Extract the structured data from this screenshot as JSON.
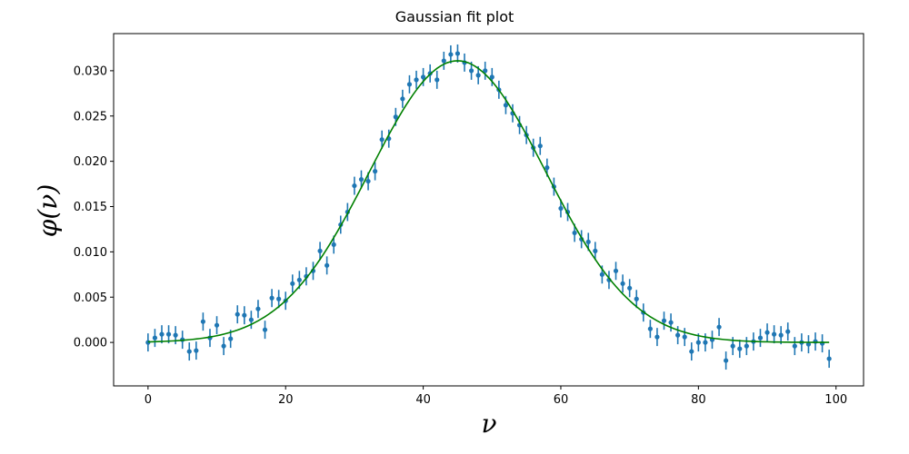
{
  "chart_data": {
    "type": "scatter",
    "title": "Gaussian fit plot",
    "xlabel": "ν",
    "ylabel": "φ(ν)",
    "xlim": [
      -5,
      104
    ],
    "ylim": [
      -0.0048,
      0.0341
    ],
    "xticks": [
      0,
      20,
      40,
      60,
      80,
      100
    ],
    "xtick_labels": [
      "0",
      "20",
      "40",
      "60",
      "80",
      "100"
    ],
    "yticks": [
      0.0,
      0.005,
      0.01,
      0.015,
      0.02,
      0.025,
      0.03
    ],
    "ytick_labels": [
      "0.000",
      "0.005",
      "0.010",
      "0.015",
      "0.020",
      "0.025",
      "0.030"
    ],
    "grid": false,
    "series": [
      {
        "kind": "errorbar",
        "color": "#1f77b4",
        "x": [
          0,
          1,
          2,
          3,
          4,
          5,
          6,
          7,
          8,
          9,
          10,
          11,
          12,
          13,
          14,
          15,
          16,
          17,
          18,
          19,
          20,
          21,
          22,
          23,
          24,
          25,
          26,
          27,
          28,
          29,
          30,
          31,
          32,
          33,
          34,
          35,
          36,
          37,
          38,
          39,
          40,
          41,
          42,
          43,
          44,
          45,
          46,
          47,
          48,
          49,
          50,
          51,
          52,
          53,
          54,
          55,
          56,
          57,
          58,
          59,
          60,
          61,
          62,
          63,
          64,
          65,
          66,
          67,
          68,
          69,
          70,
          71,
          72,
          73,
          74,
          75,
          76,
          77,
          78,
          79,
          80,
          81,
          82,
          83,
          84,
          85,
          86,
          87,
          88,
          89,
          90,
          91,
          92,
          93,
          94,
          95,
          96,
          97,
          98,
          99
        ],
        "y": [
          0.0,
          0.0005,
          0.0009,
          0.0009,
          0.0008,
          0.0003,
          -0.001,
          -0.0009,
          0.0023,
          0.0005,
          0.0019,
          -0.0004,
          0.0004,
          0.0031,
          0.003,
          0.0025,
          0.0037,
          0.0014,
          0.0049,
          0.0048,
          0.0046,
          0.0065,
          0.0069,
          0.0073,
          0.0079,
          0.0101,
          0.0085,
          0.0108,
          0.013,
          0.0144,
          0.0173,
          0.018,
          0.0178,
          0.0189,
          0.0224,
          0.0225,
          0.0249,
          0.0269,
          0.0285,
          0.029,
          0.0293,
          0.0297,
          0.029,
          0.0311,
          0.0318,
          0.0319,
          0.0309,
          0.03,
          0.0295,
          0.03,
          0.0293,
          0.0279,
          0.0262,
          0.0253,
          0.024,
          0.0229,
          0.0215,
          0.0217,
          0.0193,
          0.0172,
          0.0148,
          0.0144,
          0.0121,
          0.0114,
          0.0111,
          0.0101,
          0.0075,
          0.0069,
          0.0079,
          0.0065,
          0.006,
          0.0048,
          0.0033,
          0.0015,
          0.0006,
          0.0024,
          0.0022,
          0.0008,
          0.0006,
          -0.001,
          0.0,
          0.0,
          0.0003,
          0.0017,
          -0.002,
          -0.0004,
          -0.0007,
          -0.0004,
          0.0001,
          0.0005,
          0.0011,
          0.0009,
          0.0008,
          0.0012,
          -0.0004,
          0.0,
          -0.0002,
          0.0001,
          -0.0001,
          -0.0018
        ],
        "yerr": 0.001
      },
      {
        "kind": "line",
        "color": "#008000",
        "mean": 45,
        "sigma": 12.8,
        "amplitude": 0.0311,
        "x_start": 0,
        "x_end": 99
      }
    ]
  }
}
